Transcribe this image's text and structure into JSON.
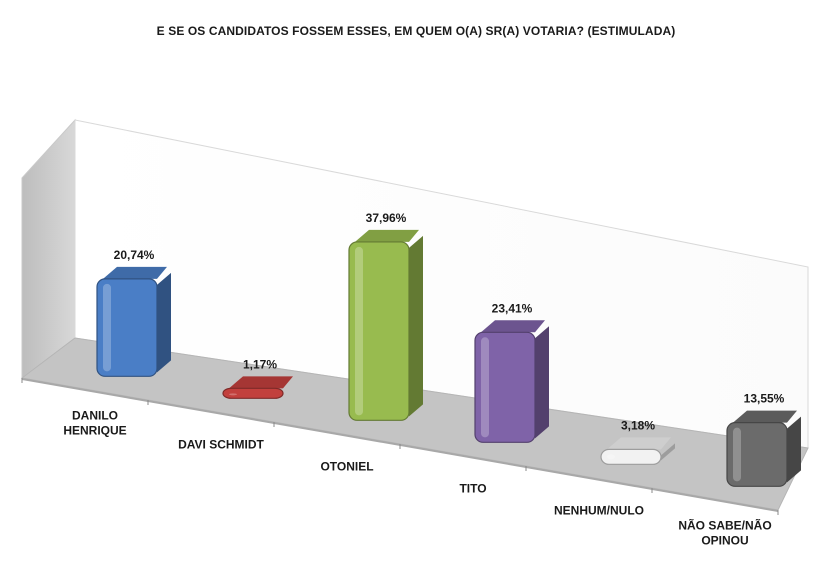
{
  "chart_data": {
    "type": "bar",
    "title": "E SE OS CANDIDATOS FOSSEM ESSES, EM QUEM O(A) SR(A) VOTARIA? (ESTIMULADA)",
    "categories": [
      [
        "DANILO",
        "HENRIQUE"
      ],
      [
        "DAVI SCHMIDT"
      ],
      [
        "OTONIEL"
      ],
      [
        "TITO"
      ],
      [
        "NENHUM/NULO"
      ],
      [
        "NÃO SABE/NÃO",
        "OPINOU"
      ]
    ],
    "values": [
      20.74,
      1.17,
      37.96,
      23.41,
      3.18,
      13.55
    ],
    "value_labels": [
      "20,74%",
      "1,17%",
      "37,96%",
      "23,41%",
      "3,18%",
      "13,55%"
    ],
    "colors": [
      "#4a7ec6",
      "#c2403d",
      "#98bb4f",
      "#7f63a8",
      "#f2f2f2",
      "#6b6b6b"
    ],
    "ylim": [
      0,
      40
    ],
    "style": "3d-column",
    "legend": "none",
    "grid": false
  }
}
